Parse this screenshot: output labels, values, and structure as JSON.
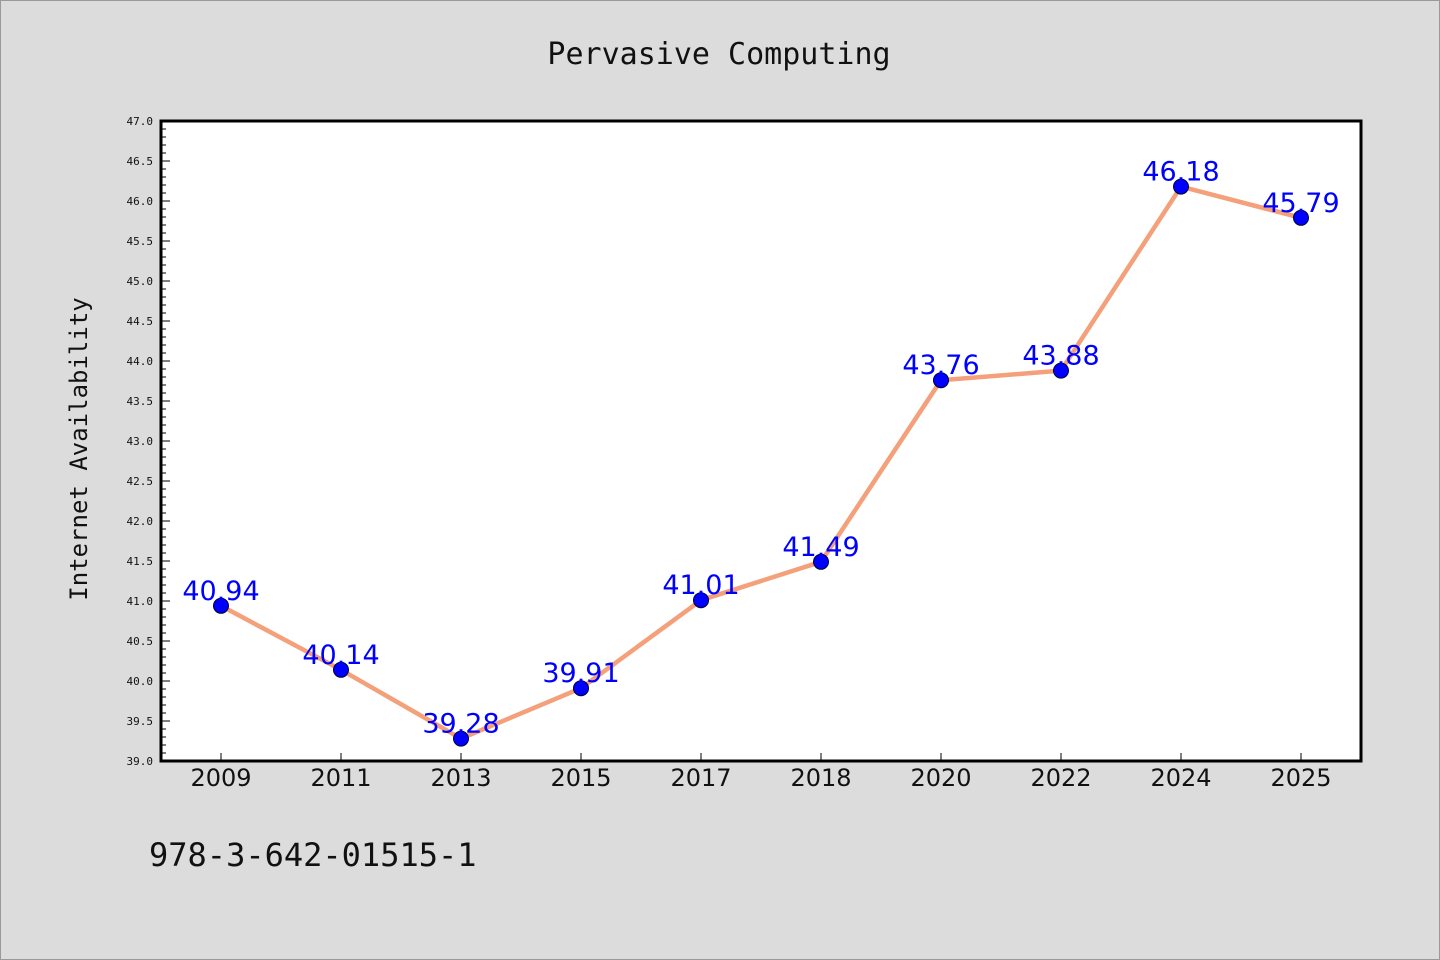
{
  "chart_data": {
    "type": "line",
    "title": "Pervasive Computing",
    "xlabel": "",
    "ylabel": "Internet Availability",
    "categories": [
      "2009",
      "2011",
      "2013",
      "2015",
      "2017",
      "2018",
      "2020",
      "2022",
      "2024",
      "2025"
    ],
    "values": [
      40.94,
      40.14,
      39.28,
      39.91,
      41.01,
      41.49,
      43.76,
      43.88,
      46.18,
      45.79
    ],
    "value_labels": [
      "40.94",
      "40.14",
      "39.28",
      "39.91",
      "41.01",
      "41.49",
      "43.76",
      "43.88",
      "46.18",
      "45.79"
    ],
    "ylim": [
      39.0,
      47.0
    ],
    "yticks": [
      "39.0",
      "39.5",
      "40.0",
      "40.5",
      "41.0",
      "41.5",
      "42.0",
      "42.5",
      "43.0",
      "43.5",
      "44.0",
      "44.5",
      "45.0",
      "45.5",
      "46.0",
      "46.5",
      "47.0"
    ],
    "grid": false,
    "legend": "none",
    "colors": {
      "line": "#f4a07a",
      "marker": "#0000ff",
      "label": "#0000ff",
      "background": "#dcdcdc",
      "plot_area": "#ffffff"
    },
    "footnote": "978-3-642-01515-1"
  }
}
